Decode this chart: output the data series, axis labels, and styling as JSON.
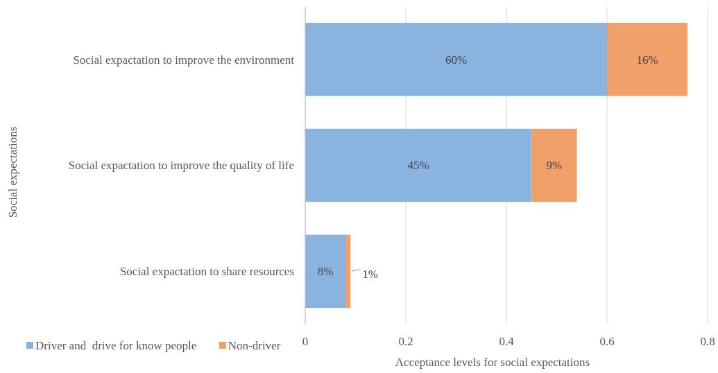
{
  "chart_data": {
    "type": "bar",
    "orientation": "horizontal",
    "stacked": true,
    "ylabel": "Social expectations",
    "xlabel": "Acceptance  levels for social expectations",
    "categories": [
      "Social expactation to improve the environment",
      "Social expactation to improve the quality of life",
      "Social expactation to share resources"
    ],
    "series": [
      {
        "name": "Driver and  drive for know people",
        "color": "#8ab4df",
        "values": [
          0.6,
          0.45,
          0.08
        ],
        "value_labels": [
          "60%",
          "45%",
          "8%"
        ]
      },
      {
        "name": "Non-driver",
        "color": "#f0a06b",
        "values": [
          0.16,
          0.09,
          0.01
        ],
        "value_labels": [
          "16%",
          "9%",
          "1%"
        ]
      }
    ],
    "xlim": [
      0,
      0.8
    ],
    "xticks": [
      0,
      0.2,
      0.4,
      0.6,
      0.8
    ],
    "grid": "x",
    "legend": "bottom left"
  }
}
